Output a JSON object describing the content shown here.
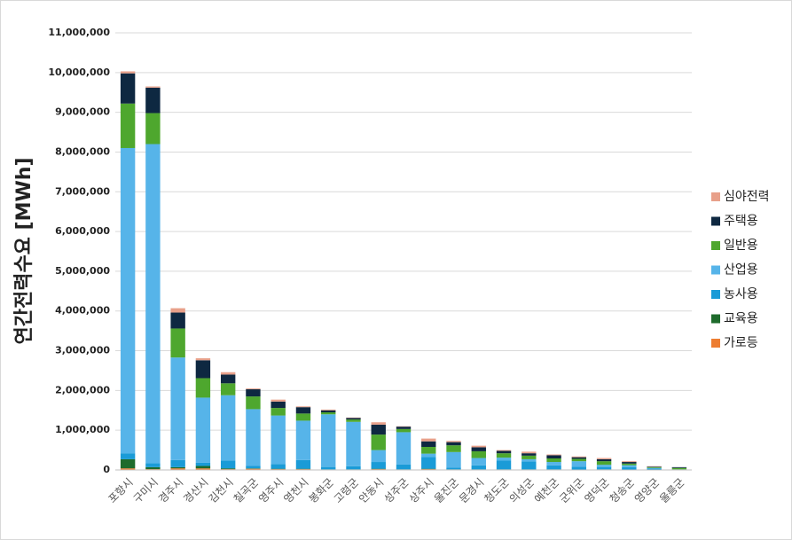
{
  "chart_data": {
    "type": "stacked_bar",
    "y_label": "연간전력수요 [MWh]",
    "categories": [
      "포항시",
      "구미시",
      "경주시",
      "경산시",
      "김천시",
      "칠곡군",
      "영주시",
      "영천시",
      "봉화군",
      "고령군",
      "안동시",
      "성주군",
      "상주시",
      "울진군",
      "문경시",
      "청도군",
      "의성군",
      "예천군",
      "군위군",
      "영덕군",
      "청송군",
      "영양군",
      "울릉군"
    ],
    "series": [
      {
        "name": "가로등",
        "color": "#ed7d31",
        "values": [
          40000,
          20000,
          40000,
          40000,
          20000,
          30000,
          20000,
          20000,
          10000,
          10000,
          20000,
          10000,
          20000,
          10000,
          10000,
          10000,
          10000,
          10000,
          5000,
          10000,
          5000,
          5000,
          5000
        ]
      },
      {
        "name": "교육용",
        "color": "#1e6b2c",
        "values": [
          230000,
          50000,
          30000,
          60000,
          20000,
          10000,
          10000,
          10000,
          5000,
          5000,
          10000,
          5000,
          10000,
          5000,
          5000,
          5000,
          5000,
          5000,
          5000,
          5000,
          5000,
          5000,
          2000
        ]
      },
      {
        "name": "농사용",
        "color": "#1a9bd7",
        "values": [
          150000,
          100000,
          180000,
          80000,
          200000,
          60000,
          120000,
          220000,
          60000,
          80000,
          170000,
          120000,
          300000,
          40000,
          100000,
          220000,
          200000,
          100000,
          70000,
          60000,
          60000,
          30000,
          3000
        ]
      },
      {
        "name": "산업용",
        "color": "#56b4e9",
        "values": [
          7680000,
          8030000,
          2580000,
          1640000,
          1640000,
          1430000,
          1220000,
          990000,
          1325000,
          1115000,
          300000,
          815000,
          80000,
          395000,
          185000,
          75000,
          55000,
          85000,
          140000,
          55000,
          50000,
          10000,
          5000
        ]
      },
      {
        "name": "일반용",
        "color": "#4ea72e",
        "values": [
          1120000,
          780000,
          730000,
          490000,
          300000,
          320000,
          190000,
          180000,
          50000,
          60000,
          390000,
          80000,
          170000,
          170000,
          170000,
          110000,
          90000,
          90000,
          60000,
          90000,
          40000,
          20000,
          35000
        ]
      },
      {
        "name": "주택용",
        "color": "#0e2841",
        "values": [
          760000,
          640000,
          400000,
          450000,
          220000,
          180000,
          160000,
          160000,
          50000,
          40000,
          250000,
          60000,
          140000,
          80000,
          100000,
          60000,
          60000,
          80000,
          40000,
          50000,
          40000,
          15000,
          20000
        ]
      },
      {
        "name": "심야전력",
        "color": "#e8a08a",
        "values": [
          50000,
          30000,
          110000,
          50000,
          60000,
          20000,
          50000,
          20000,
          20000,
          10000,
          60000,
          10000,
          70000,
          30000,
          40000,
          20000,
          40000,
          20000,
          20000,
          30000,
          20000,
          10000,
          0
        ]
      }
    ],
    "ylim": [
      0,
      11000000
    ],
    "yticks": [
      0,
      {
        "value": 1000000,
        "label": "1,000,000"
      },
      {
        "value": 2000000,
        "label": "2,000,000"
      },
      {
        "value": 3000000,
        "label": "3,000,000"
      },
      {
        "value": 4000000,
        "label": "4,000,000"
      },
      {
        "value": 5000000,
        "label": "5,000,000"
      },
      {
        "value": 6000000,
        "label": "6,000,000"
      },
      {
        "value": 7000000,
        "label": "7,000,000"
      },
      {
        "value": 8000000,
        "label": "8,000,000"
      },
      {
        "value": 9000000,
        "label": "9,000,000"
      },
      {
        "value": 10000000,
        "label": "10,000,000"
      },
      {
        "value": 11000000,
        "label": "11,000,000"
      }
    ],
    "grid": true,
    "legend": "right"
  }
}
